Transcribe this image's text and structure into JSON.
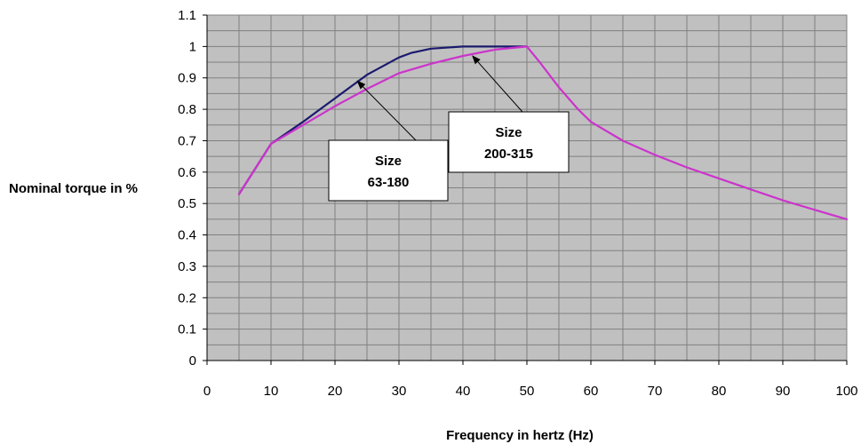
{
  "chart_data": {
    "type": "line",
    "xlabel": "Frequency in hertz (Hz)",
    "ylabel": "Nominal torque in %",
    "xlim": [
      0,
      100
    ],
    "ylim": [
      0,
      1.1
    ],
    "x_ticks": [
      "0",
      "10",
      "20",
      "30",
      "40",
      "50",
      "60",
      "70",
      "80",
      "90",
      "100"
    ],
    "y_ticks": [
      "0",
      "0.1",
      "0.2",
      "0.3",
      "0.4",
      "0.5",
      "0.6",
      "0.7",
      "0.8",
      "0.9",
      "1",
      "1.1"
    ],
    "grid": true,
    "plot_background": "#c0c0c0",
    "series": [
      {
        "name": "Size 63-180",
        "color": "#1a1a6e",
        "x": [
          5,
          10,
          15,
          20,
          25,
          30,
          32,
          35,
          40,
          45,
          50
        ],
        "y": [
          0.53,
          0.69,
          0.76,
          0.835,
          0.91,
          0.965,
          0.98,
          0.993,
          1.0,
          1.0,
          1.0
        ]
      },
      {
        "name": "Size 200-315",
        "color": "#cc33cc",
        "x": [
          5,
          10,
          15,
          20,
          25,
          30,
          35,
          40,
          45,
          50,
          52,
          55,
          58,
          60,
          65,
          70,
          75,
          80,
          85,
          90,
          95,
          100
        ],
        "y": [
          0.53,
          0.69,
          0.75,
          0.81,
          0.865,
          0.915,
          0.945,
          0.97,
          0.99,
          1.0,
          0.95,
          0.87,
          0.8,
          0.76,
          0.7,
          0.655,
          0.615,
          0.58,
          0.545,
          0.51,
          0.48,
          0.45
        ]
      }
    ],
    "annotations": [
      {
        "text_line1": "Size",
        "text_line2": "63-180",
        "arrow_to_x": 23.5,
        "arrow_to_y": 0.89
      },
      {
        "text_line1": "Size",
        "text_line2": "200-315",
        "arrow_to_x": 41.5,
        "arrow_to_y": 0.97
      }
    ]
  }
}
